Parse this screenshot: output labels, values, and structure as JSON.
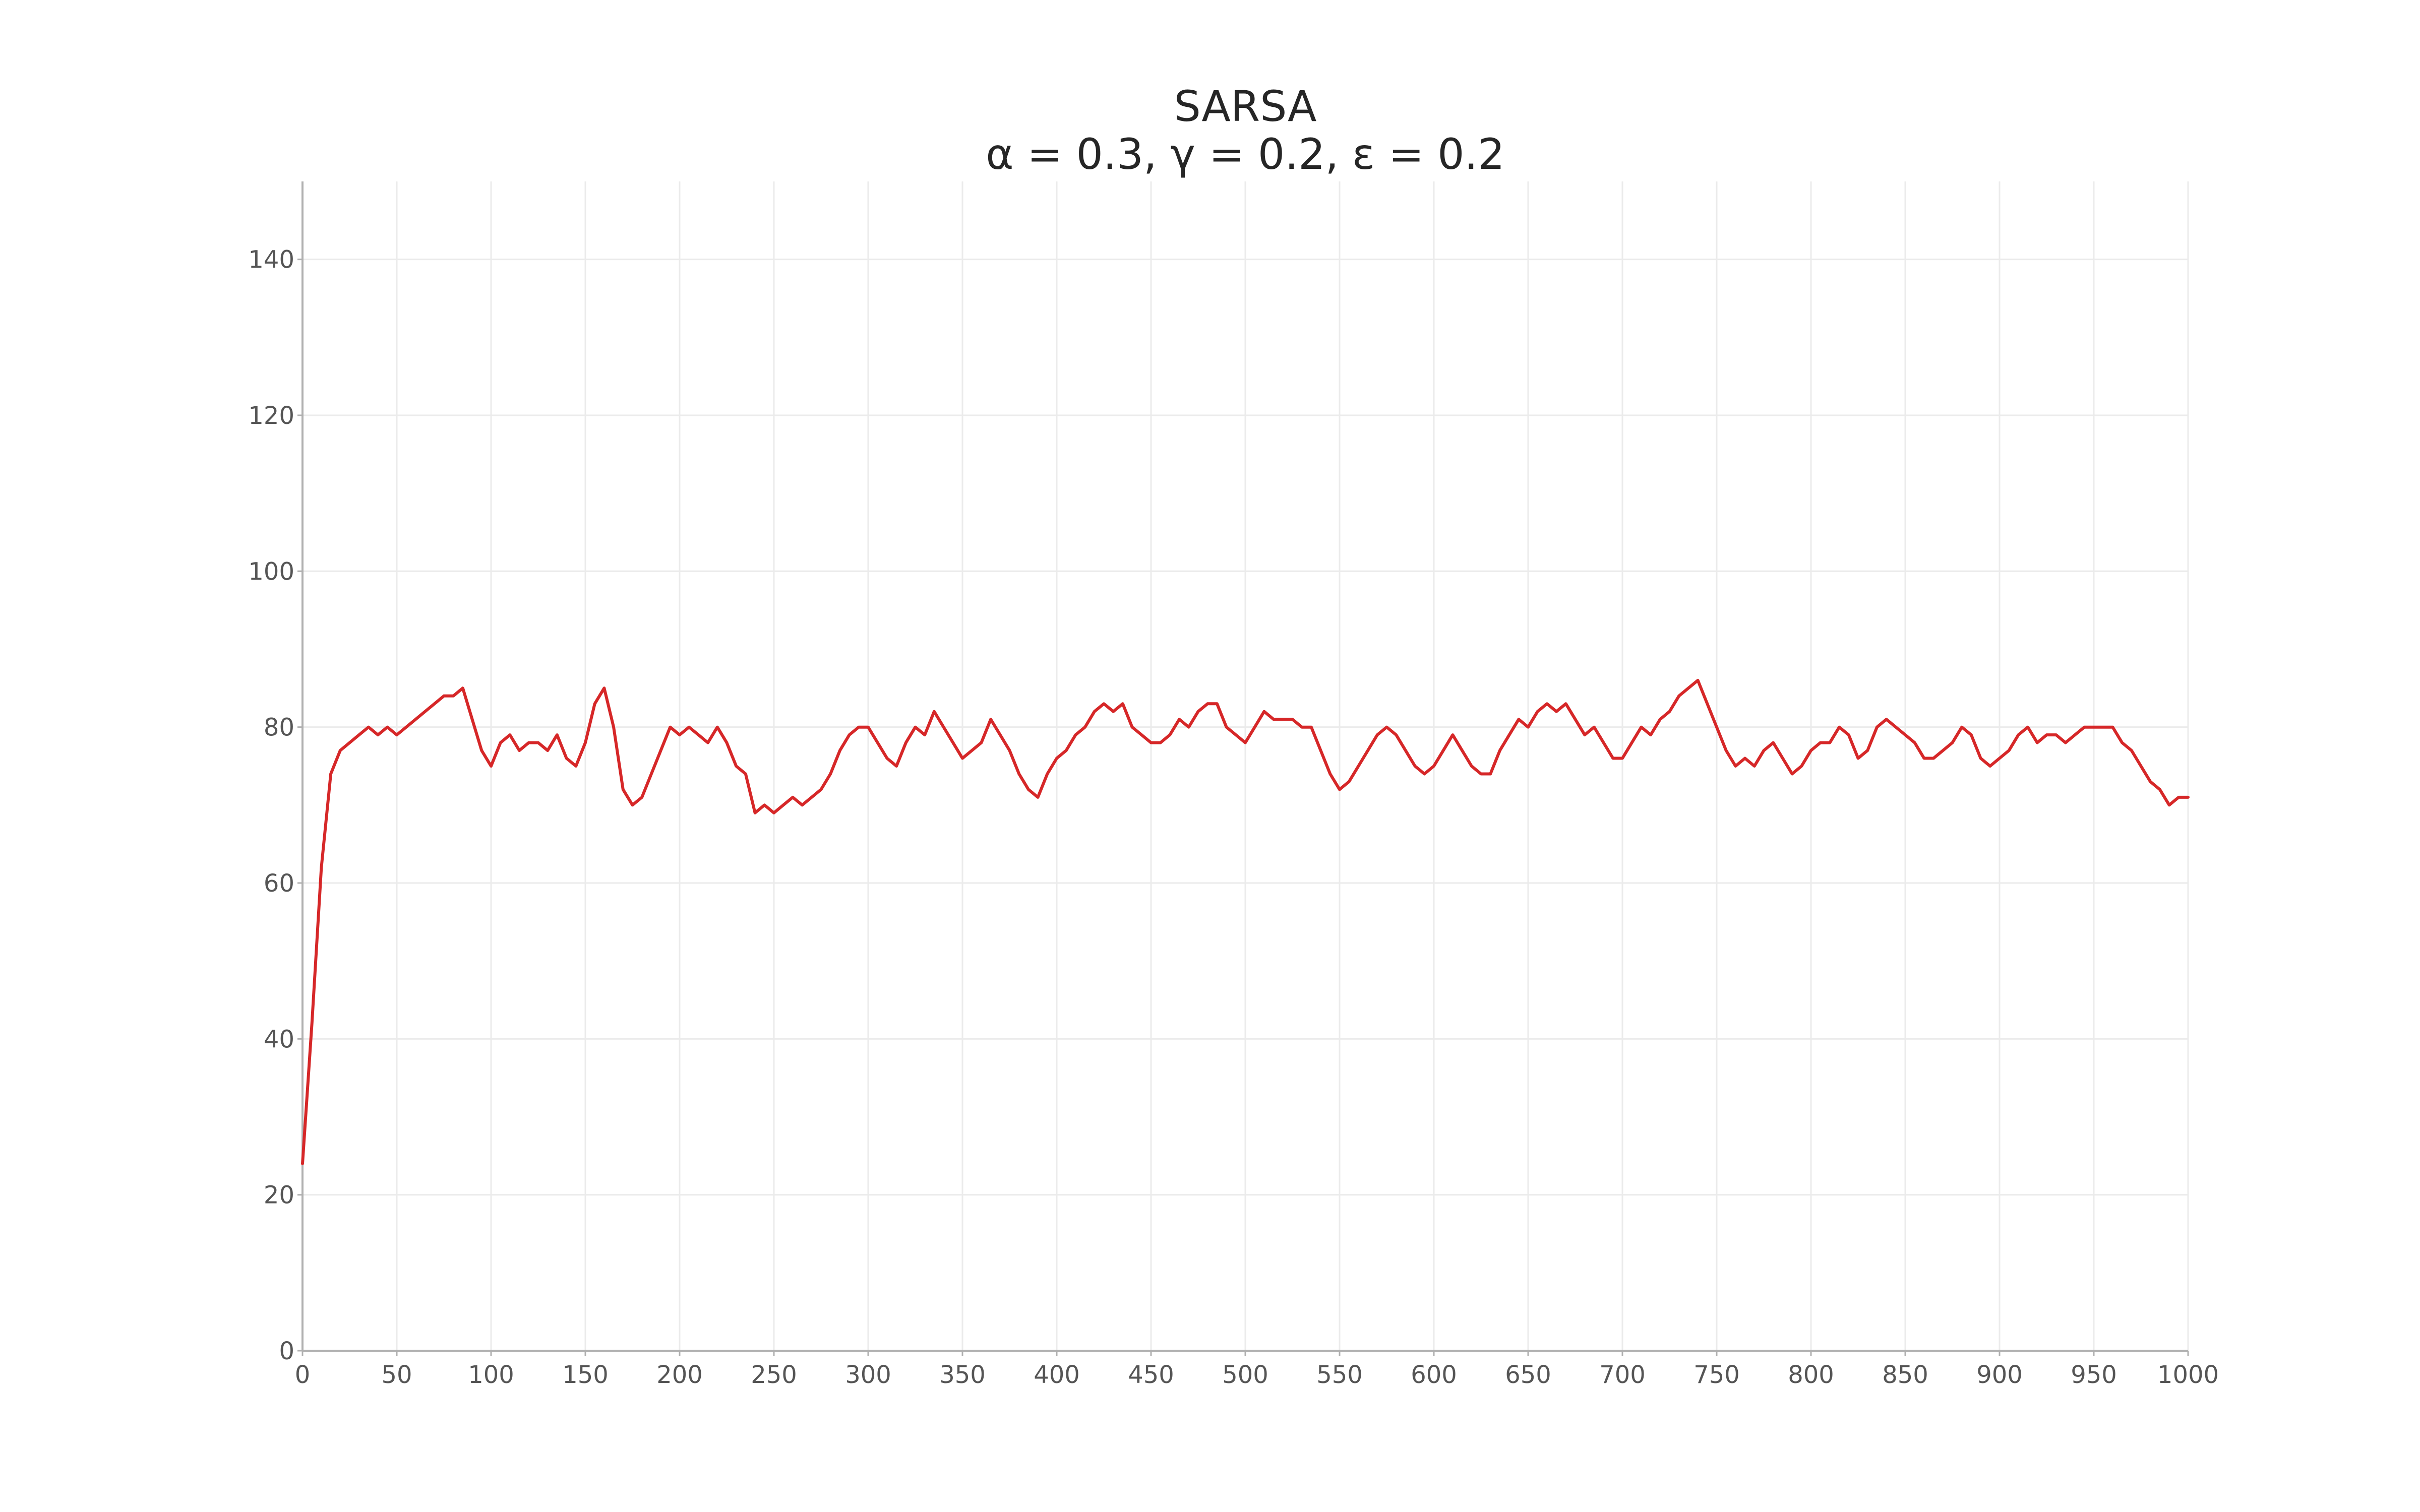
{
  "chart_data": {
    "type": "line",
    "title": "SARSA",
    "subtitle": "α = 0.3, γ = 0.2, ε = 0.2",
    "xlabel": "",
    "ylabel": "",
    "xlim": [
      0,
      1000
    ],
    "ylim": [
      0,
      150
    ],
    "grid": true,
    "x_ticks": [
      0,
      50,
      100,
      150,
      200,
      250,
      300,
      350,
      400,
      450,
      500,
      550,
      600,
      650,
      700,
      750,
      800,
      850,
      900,
      950,
      1000
    ],
    "y_ticks": [
      0,
      20,
      40,
      60,
      80,
      100,
      120,
      140
    ],
    "series": [
      {
        "color": "#d62728",
        "x": [
          0,
          5,
          10,
          15,
          20,
          25,
          30,
          35,
          40,
          45,
          50,
          55,
          60,
          65,
          70,
          75,
          80,
          85,
          90,
          95,
          100,
          105,
          110,
          115,
          120,
          125,
          130,
          135,
          140,
          145,
          150,
          155,
          160,
          165,
          170,
          175,
          180,
          185,
          190,
          195,
          200,
          205,
          210,
          215,
          220,
          225,
          230,
          235,
          240,
          245,
          250,
          255,
          260,
          265,
          270,
          275,
          280,
          285,
          290,
          295,
          300,
          305,
          310,
          315,
          320,
          325,
          330,
          335,
          340,
          345,
          350,
          355,
          360,
          365,
          370,
          375,
          380,
          385,
          390,
          395,
          400,
          405,
          410,
          415,
          420,
          425,
          430,
          435,
          440,
          445,
          450,
          455,
          460,
          465,
          470,
          475,
          480,
          485,
          490,
          495,
          500,
          505,
          510,
          515,
          520,
          525,
          530,
          535,
          540,
          545,
          550,
          555,
          560,
          565,
          570,
          575,
          580,
          585,
          590,
          595,
          600,
          605,
          610,
          615,
          620,
          625,
          630,
          635,
          640,
          645,
          650,
          655,
          660,
          665,
          670,
          675,
          680,
          685,
          690,
          695,
          700,
          705,
          710,
          715,
          720,
          725,
          730,
          735,
          740,
          745,
          750,
          755,
          760,
          765,
          770,
          775,
          780,
          785,
          790,
          795,
          800,
          805,
          810,
          815,
          820,
          825,
          830,
          835,
          840,
          845,
          850,
          855,
          860,
          865,
          870,
          875,
          880,
          885,
          890,
          895,
          900,
          905,
          910,
          915,
          920,
          925,
          930,
          935,
          940,
          945,
          950,
          955,
          960,
          965,
          970,
          975,
          980,
          985,
          990,
          995,
          1000
        ],
        "y": [
          24,
          42,
          62,
          74,
          77,
          78,
          79,
          80,
          79,
          80,
          79,
          80,
          81,
          82,
          83,
          84,
          84,
          85,
          81,
          77,
          75,
          78,
          79,
          77,
          78,
          78,
          77,
          79,
          76,
          75,
          78,
          83,
          85,
          80,
          72,
          70,
          71,
          74,
          77,
          80,
          79,
          80,
          79,
          78,
          80,
          78,
          75,
          74,
          69,
          70,
          69,
          70,
          71,
          70,
          71,
          72,
          74,
          77,
          79,
          80,
          80,
          78,
          76,
          75,
          78,
          80,
          79,
          82,
          80,
          78,
          76,
          77,
          78,
          81,
          79,
          77,
          74,
          72,
          71,
          74,
          76,
          77,
          79,
          80,
          82,
          83,
          82,
          83,
          80,
          79,
          78,
          78,
          79,
          81,
          80,
          82,
          83,
          83,
          80,
          79,
          78,
          80,
          82,
          81,
          81,
          81,
          80,
          80,
          77,
          74,
          72,
          73,
          75,
          77,
          79,
          80,
          79,
          77,
          75,
          74,
          75,
          77,
          79,
          77,
          75,
          74,
          74,
          77,
          79,
          81,
          80,
          82,
          83,
          82,
          83,
          81,
          79,
          80,
          78,
          76,
          76,
          78,
          80,
          79,
          81,
          82,
          84,
          85,
          86,
          83,
          80,
          77,
          75,
          76,
          75,
          77,
          78,
          76,
          74,
          75,
          77,
          78,
          78,
          80,
          79,
          76,
          77,
          80,
          81,
          80,
          79,
          78,
          76,
          76,
          77,
          78,
          80,
          79,
          76,
          75,
          76,
          77,
          79,
          80,
          78,
          79,
          79,
          78,
          79,
          80,
          80,
          80,
          80,
          78,
          77,
          75,
          73,
          72,
          70,
          71,
          71
        ]
      }
    ]
  }
}
